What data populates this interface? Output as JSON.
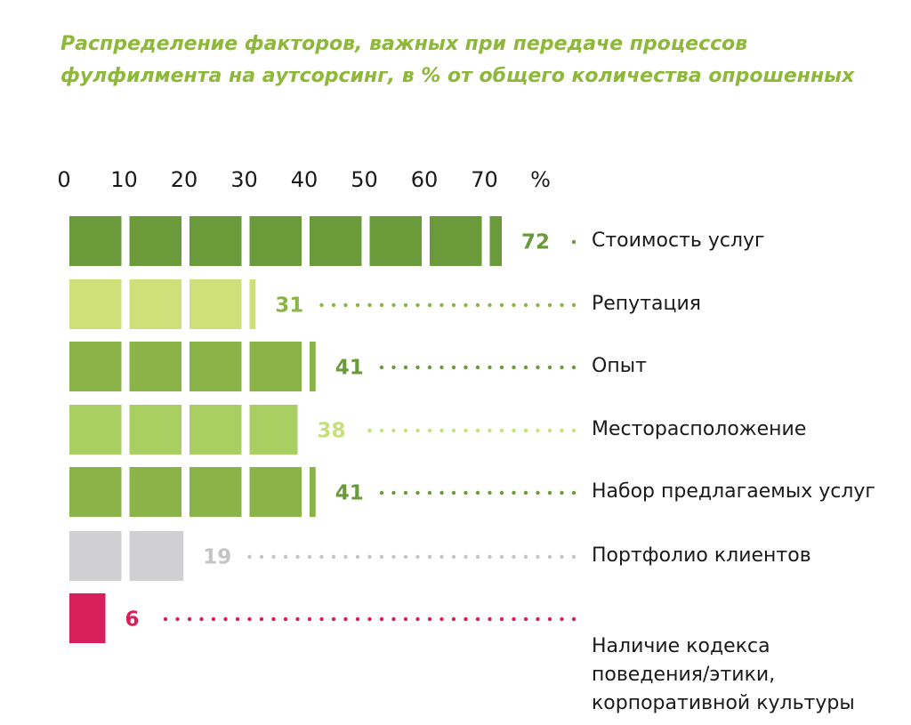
{
  "chart_data": {
    "type": "bar",
    "orientation": "horizontal",
    "title": "Распределение факторов, важных при передаче процессов\nфулфилмента на аутсорсинг, в % от общего количества опрошенных",
    "x_unit": "%",
    "categories": [
      "Стоимость услуг",
      "Репутация",
      "Опыт",
      "Месторасположение",
      "Набор предлагаемых услуг",
      "Портфолио клиентов",
      "Наличие кодекса\nповедения/этики,\nкорпоративной культуры"
    ],
    "values": [
      72,
      31,
      41,
      38,
      41,
      19,
      6
    ],
    "colors": [
      "#6a9a3a",
      "#cfe07a",
      "#8ab447",
      "#a9cf62",
      "#8ab447",
      "#d0d0d2",
      "#d81e5b"
    ],
    "label_colors": [
      "#6a9a3a",
      "#8ab447",
      "#6a9a3a",
      "#c6e07a",
      "#6a9a3a",
      "#c4c4c6",
      "#d81e5b"
    ],
    "segment": 10,
    "xlim": [
      0,
      75
    ],
    "xticks": [
      0,
      10,
      20,
      30,
      40,
      50,
      60,
      70
    ]
  }
}
